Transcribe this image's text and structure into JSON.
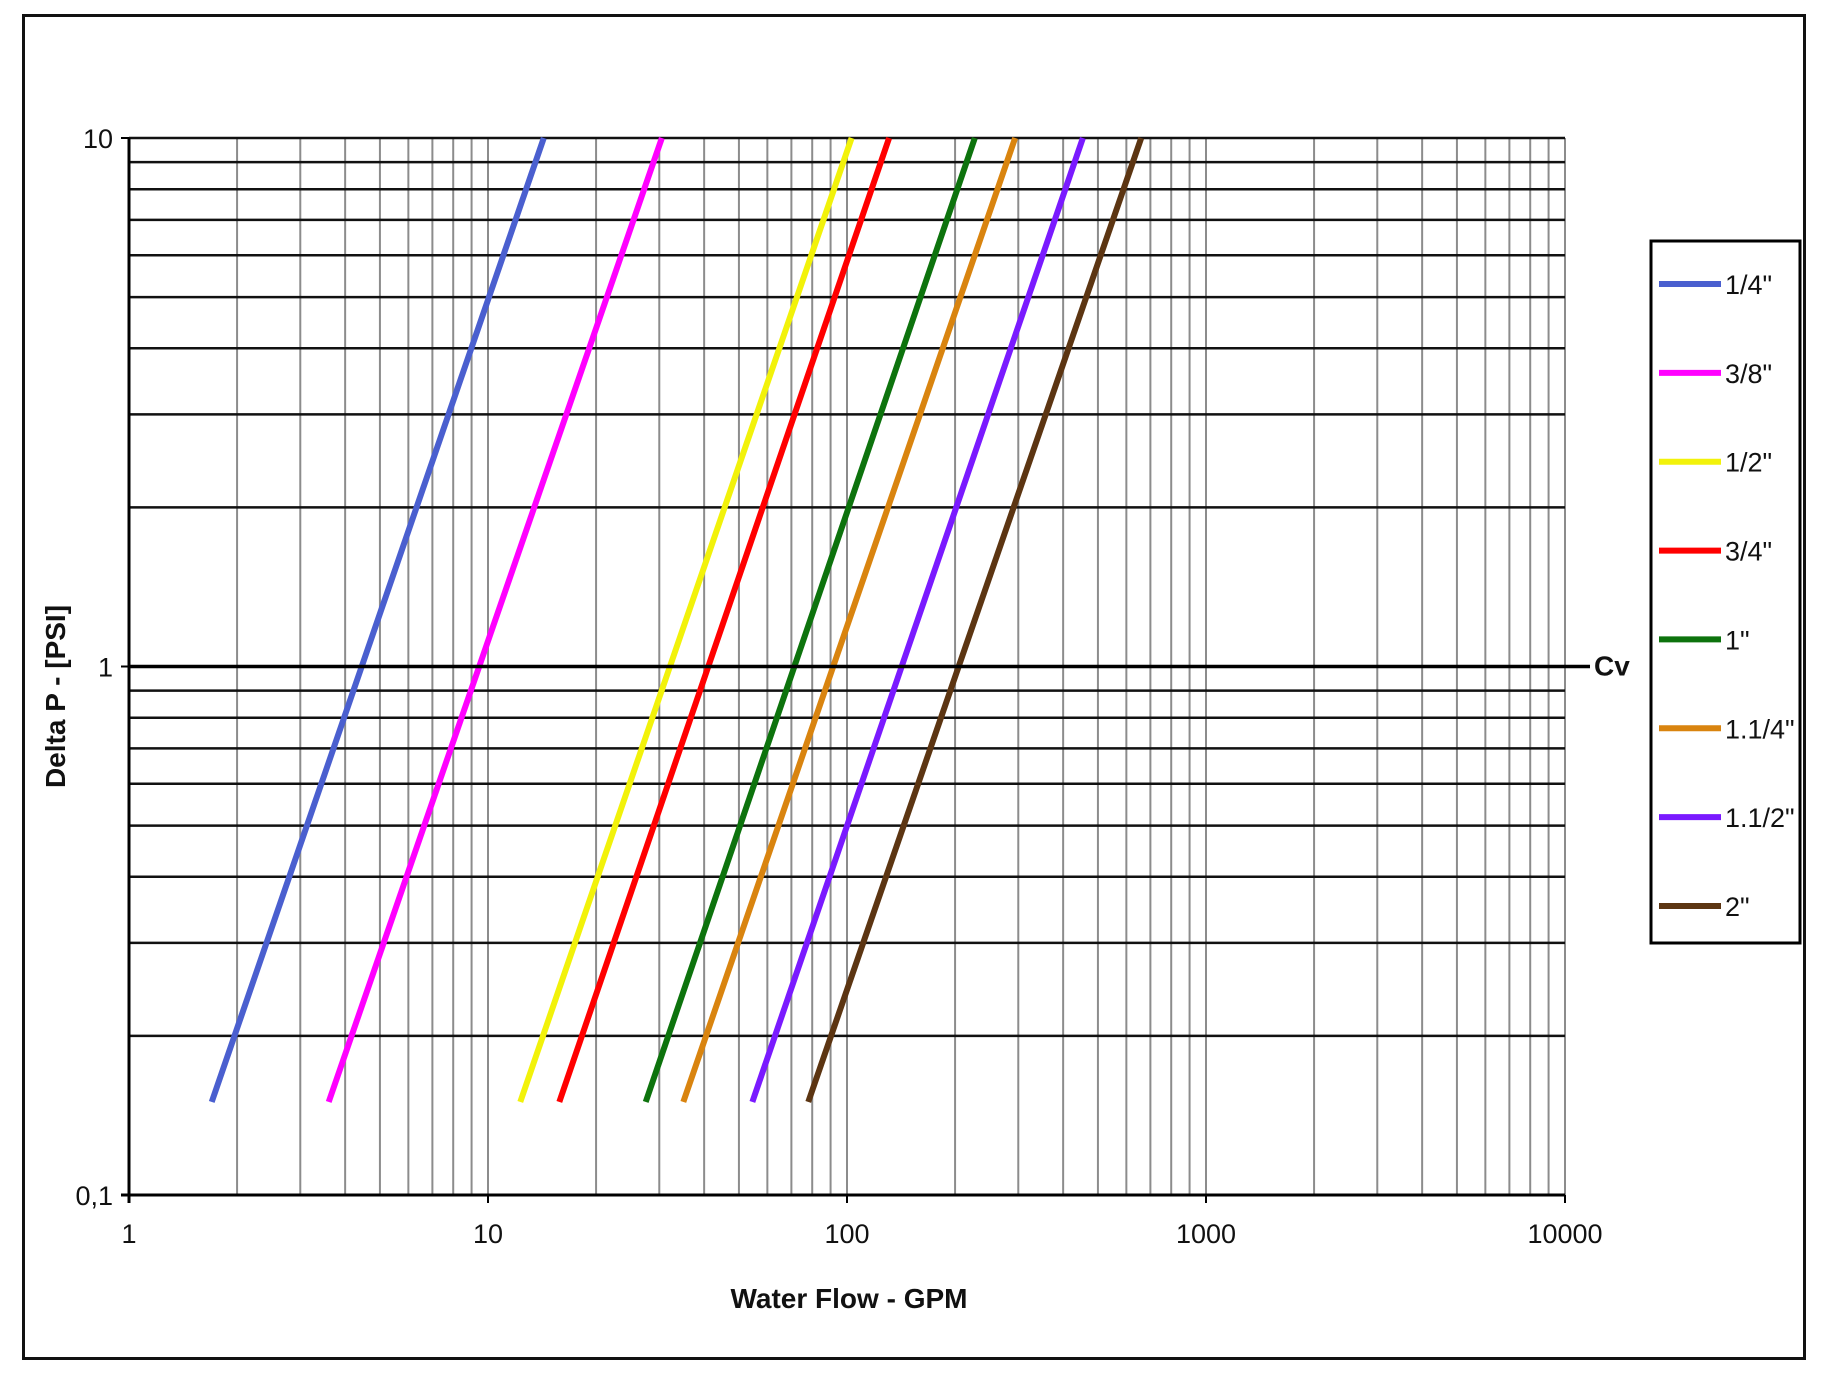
{
  "chart_data": {
    "type": "line",
    "xscale": "log",
    "yscale": "log",
    "xlabel": "Water Flow - GPM",
    "ylabel": "Delta P - [PSI]",
    "xlim": [
      1,
      10000
    ],
    "ylim": [
      0.1,
      10
    ],
    "x_tick_labels": [
      "1",
      "10",
      "100",
      "1000",
      "10000"
    ],
    "y_tick_labels": [
      "0,1",
      "1",
      "10"
    ],
    "grid": true,
    "legend_position": "right",
    "reference_line": {
      "y": 1,
      "label": "Cv"
    },
    "series": [
      {
        "name": "1/4\"",
        "color": "#4a5fcf",
        "x": [
          1.7,
          14.3
        ],
        "y": [
          0.15,
          10
        ]
      },
      {
        "name": "3/8\"",
        "color": "#ff00ff",
        "x": [
          3.6,
          30.5
        ],
        "y": [
          0.15,
          10
        ]
      },
      {
        "name": "1/2\"",
        "color": "#f2f20a",
        "x": [
          12.3,
          103
        ],
        "y": [
          0.15,
          10
        ]
      },
      {
        "name": "3/4\"",
        "color": "#ff0000",
        "x": [
          15.8,
          131
        ],
        "y": [
          0.15,
          10
        ]
      },
      {
        "name": "1\"",
        "color": "#0d730d",
        "x": [
          27.5,
          227
        ],
        "y": [
          0.15,
          10
        ]
      },
      {
        "name": "1.1/4\"",
        "color": "#d9840f",
        "x": [
          35,
          294
        ],
        "y": [
          0.15,
          10
        ]
      },
      {
        "name": "1.1/2\"",
        "color": "#7a1aff",
        "x": [
          54.5,
          454
        ],
        "y": [
          0.15,
          10
        ]
      },
      {
        "name": "2\"",
        "color": "#5c3512",
        "x": [
          78,
          660
        ],
        "y": [
          0.15,
          10
        ]
      }
    ]
  }
}
